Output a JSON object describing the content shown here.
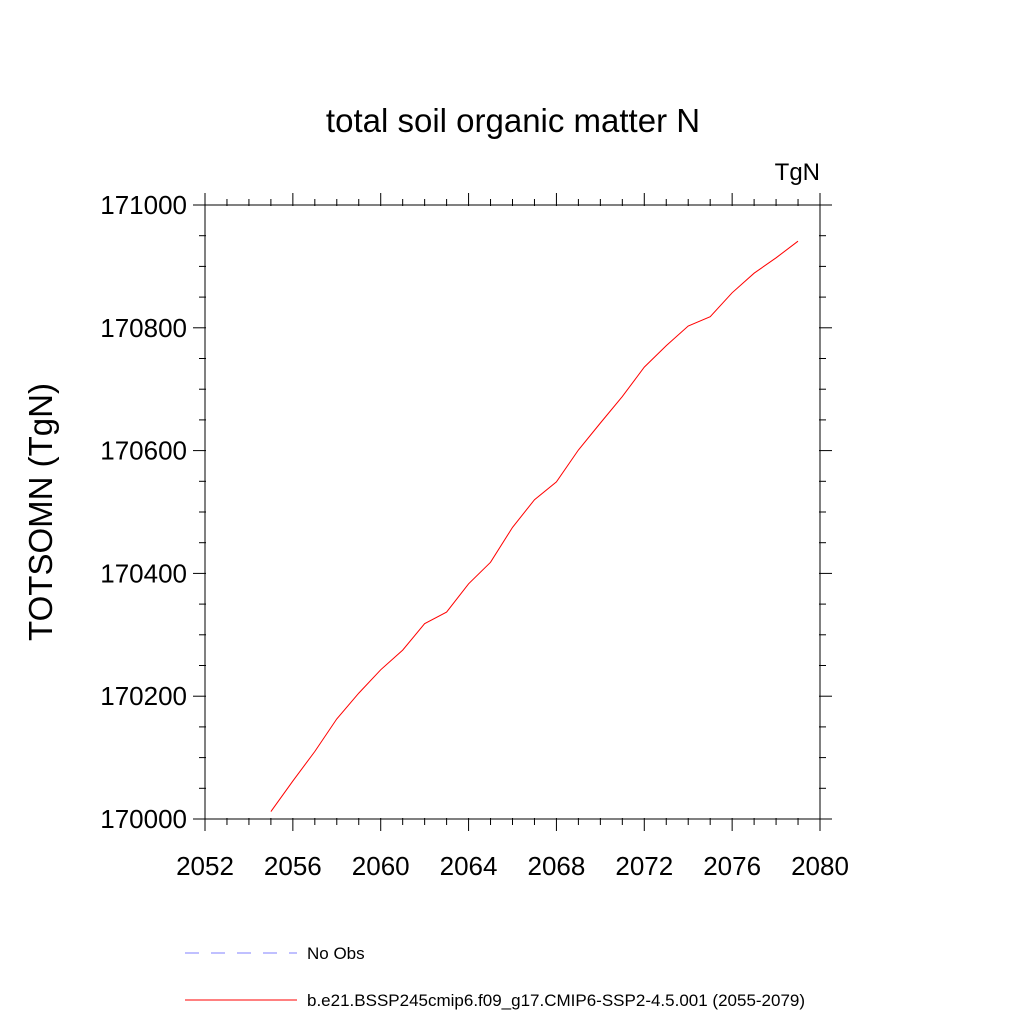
{
  "chart_data": {
    "type": "line",
    "title": "total soil organic matter N",
    "units_label": "TgN",
    "xlabel": "",
    "ylabel": "TOTSOMN  (TgN)",
    "xlim": [
      2052,
      2080
    ],
    "ylim": [
      170000,
      171000
    ],
    "x_ticks": [
      2052,
      2056,
      2060,
      2064,
      2068,
      2072,
      2076,
      2080
    ],
    "y_ticks": [
      170000,
      170200,
      170400,
      170600,
      170800,
      171000
    ],
    "grid": false,
    "legend_position": "bottom",
    "series": [
      {
        "name": "b.e21.BSSP245cmip6.f09_g17.CMIP6-SSP2-4.5.001 (2055-2079)",
        "color": "#ff0000",
        "style": "solid",
        "x": [
          2055,
          2056,
          2057,
          2058,
          2059,
          2060,
          2061,
          2062,
          2063,
          2064,
          2065,
          2066,
          2067,
          2068,
          2069,
          2070,
          2071,
          2072,
          2073,
          2074,
          2075,
          2076,
          2077,
          2078,
          2079
        ],
        "y": [
          170012,
          170062,
          170110,
          170163,
          170205,
          170243,
          170275,
          170318,
          170337,
          170383,
          170418,
          170475,
          170520,
          170549,
          170601,
          170645,
          170688,
          170736,
          170771,
          170803,
          170818,
          170857,
          170889,
          170914,
          170941
        ]
      },
      {
        "name": "No Obs",
        "color": "#8080ff",
        "style": "dashed",
        "x": [],
        "y": []
      }
    ]
  }
}
